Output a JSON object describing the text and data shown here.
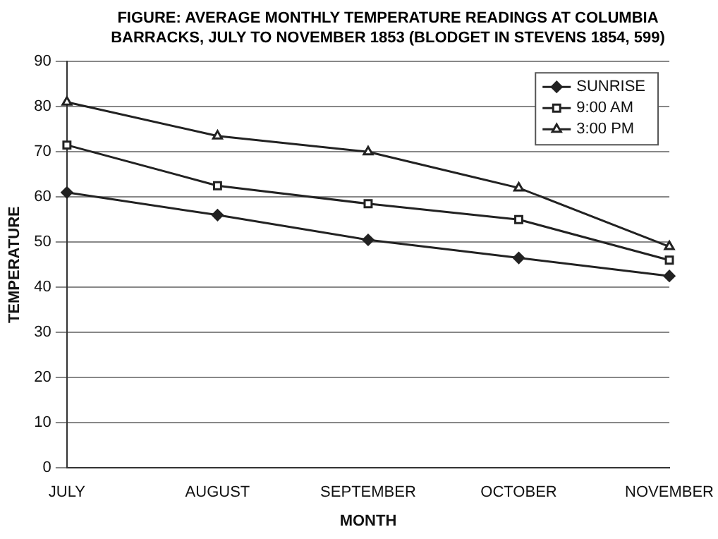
{
  "chart_data": {
    "type": "line",
    "title": "FIGURE: AVERAGE MONTHLY TEMPERATURE READINGS AT COLUMBIA BARRACKS, JULY TO NOVEMBER 1853 (BLODGET IN STEVENS 1854, 599)",
    "xlabel": "MONTH",
    "ylabel": "TEMPERATURE",
    "categories": [
      "JULY",
      "AUGUST",
      "SEPTEMBER",
      "OCTOBER",
      "NOVEMBER"
    ],
    "series": [
      {
        "name": "SUNRISE",
        "color": "#222222",
        "marker": "diamond",
        "values": [
          61,
          56,
          50.5,
          46.5,
          42.5
        ]
      },
      {
        "name": "9:00 AM",
        "color": "#222222",
        "marker": "square",
        "values": [
          71.5,
          62.5,
          58.5,
          55,
          46
        ]
      },
      {
        "name": "3:00 PM",
        "color": "#222222",
        "marker": "triangle",
        "values": [
          81,
          73.5,
          70,
          62,
          49
        ]
      }
    ],
    "ylim": [
      0,
      90
    ],
    "yticks": [
      0,
      10,
      20,
      30,
      40,
      50,
      60,
      70,
      80,
      90
    ],
    "grid": "y",
    "legend": "top right",
    "line_style": "solid"
  }
}
